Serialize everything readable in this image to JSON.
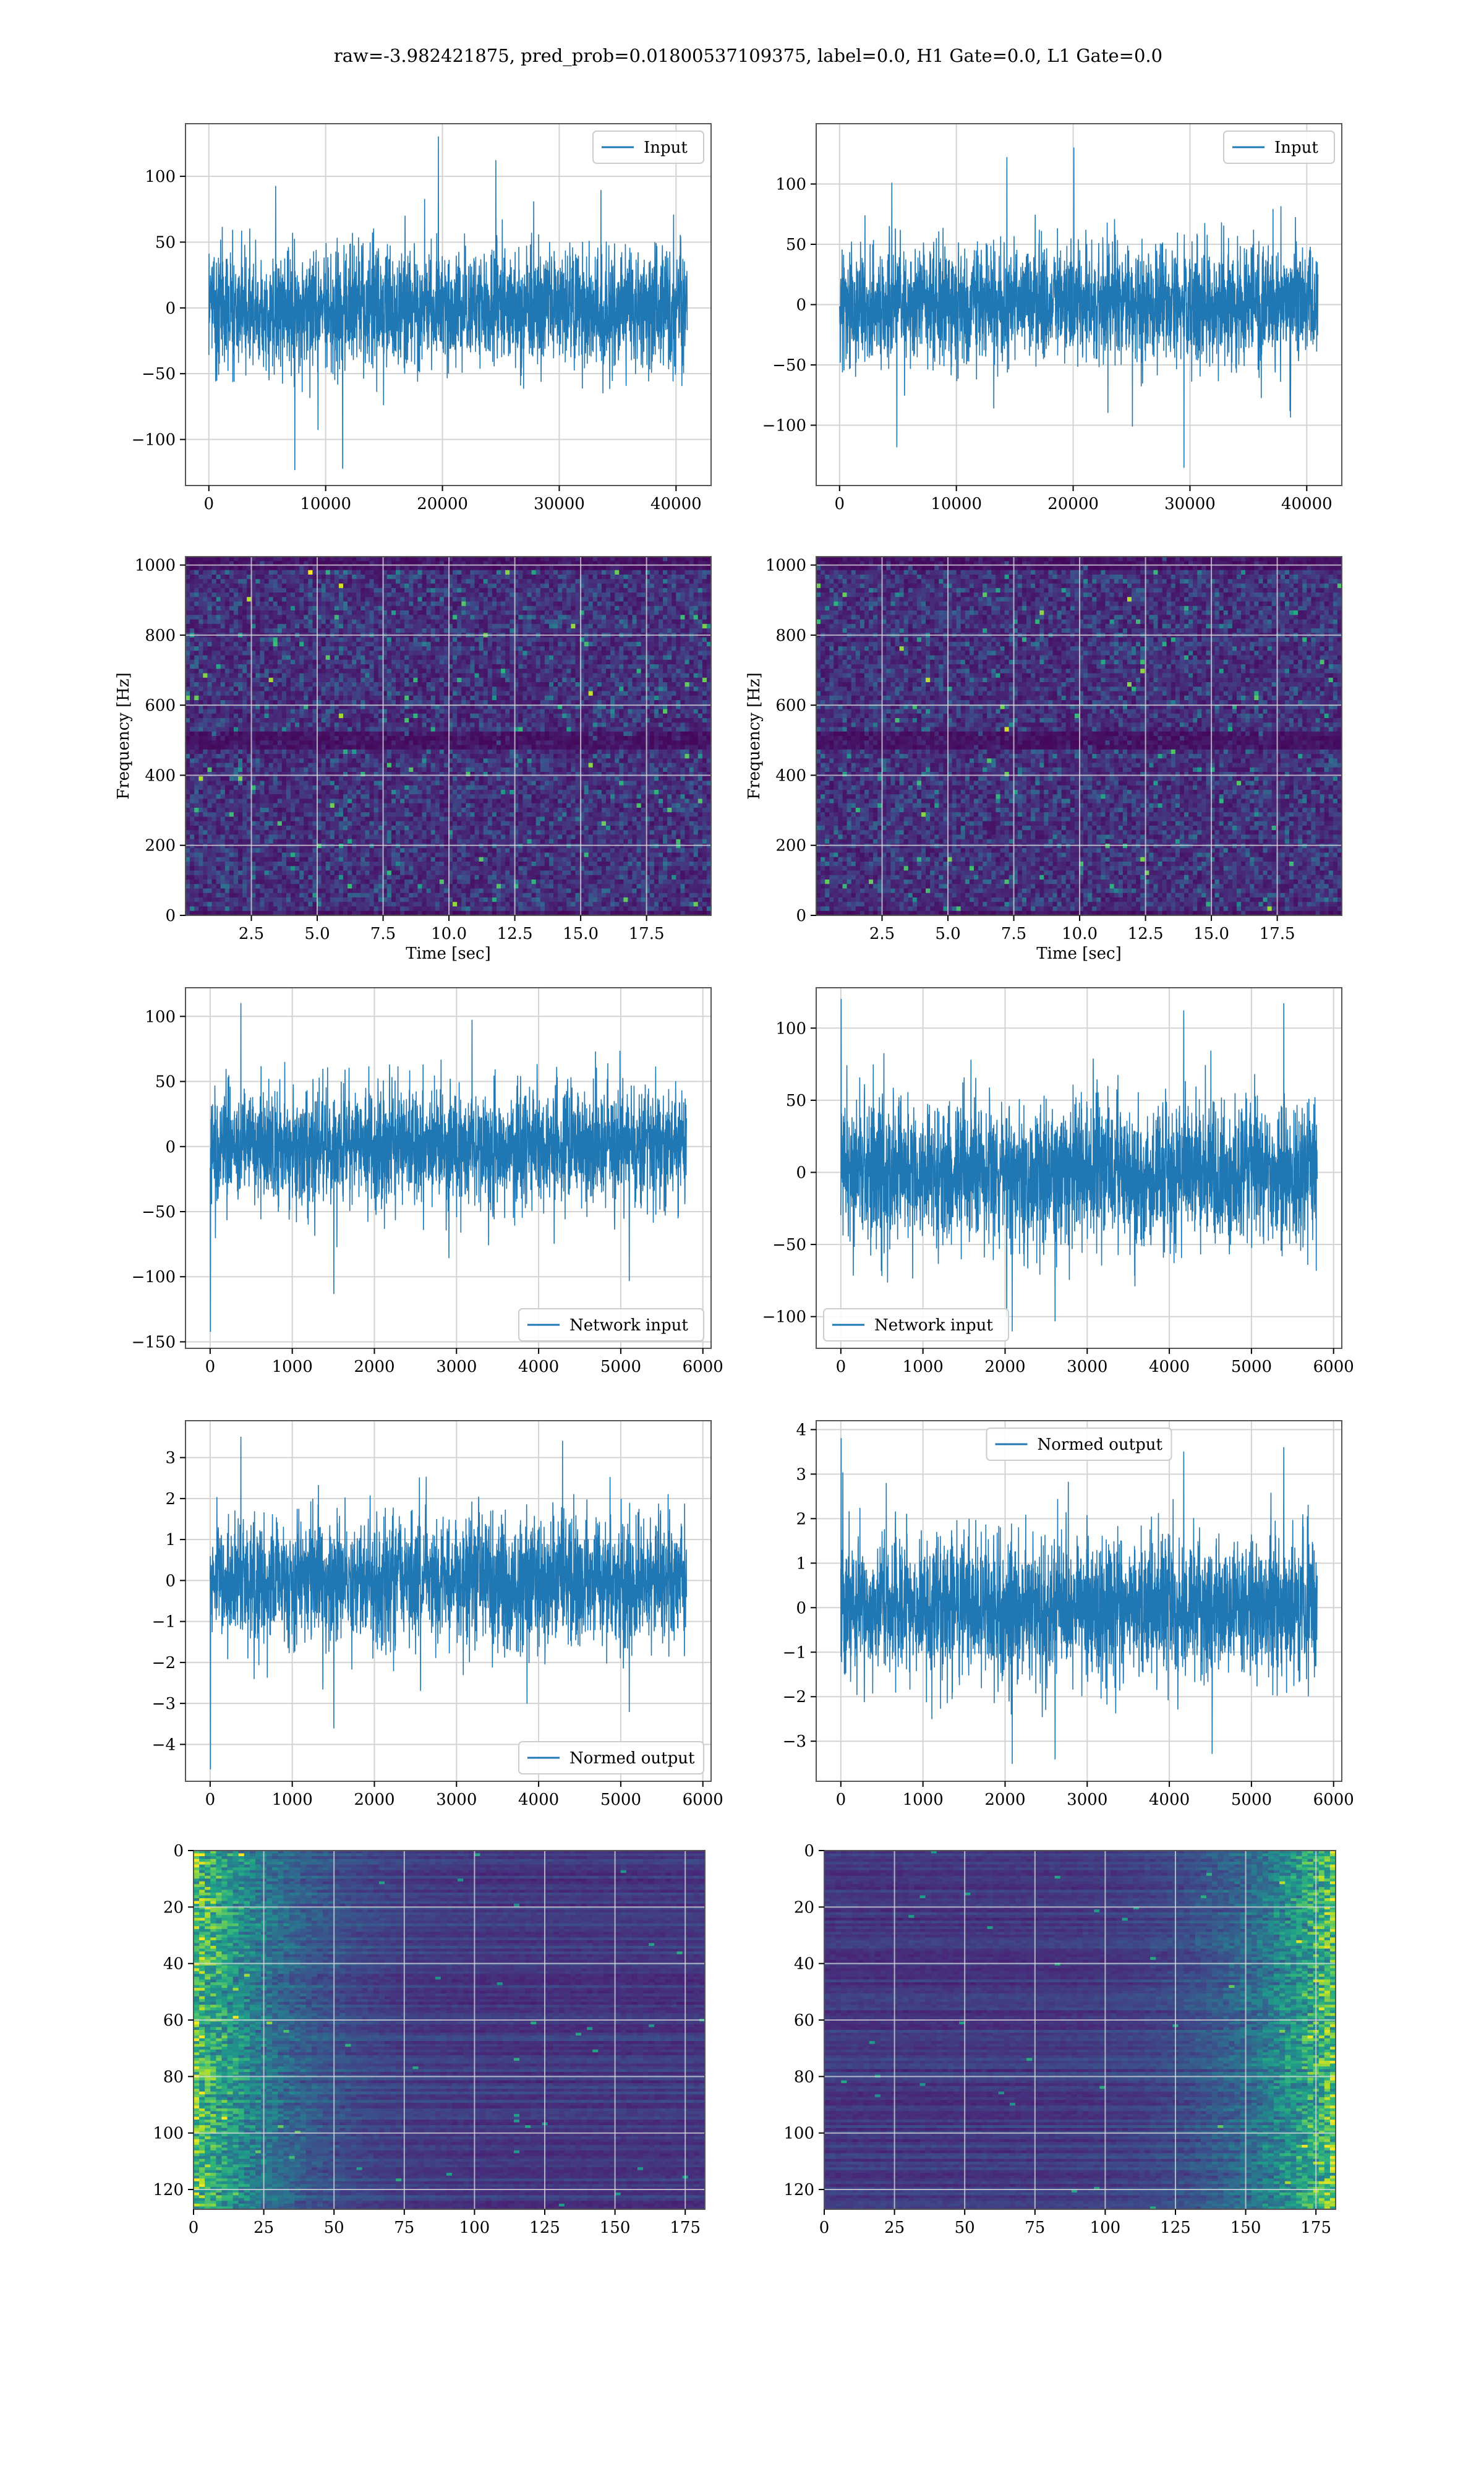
{
  "figure": {
    "suptitle": "raw=-3.982421875, pred_prob=0.01800537109375, label=0.0, H1 Gate=0.0, L1 Gate=0.0"
  },
  "colors": {
    "line": "#1f77b4",
    "grid": "#d3d3d3",
    "frame": "#555555",
    "viridis_low": "#440154",
    "viridis_mid": "#21918c",
    "viridis_high": "#fde725"
  },
  "chart_data": [
    {
      "id": "input-h1",
      "type": "line",
      "series": [
        {
          "name": "Input",
          "approx_envelope": [
            -100,
            100
          ],
          "length": 40960
        }
      ],
      "xlim": [
        -2000,
        43000
      ],
      "ylim": [
        -135,
        140
      ],
      "xticks": [
        0,
        10000,
        20000,
        30000,
        40000
      ],
      "xtick_labels": [
        "0",
        "10000",
        "20000",
        "30000",
        "40000"
      ],
      "yticks": [
        -100,
        -50,
        0,
        50,
        100
      ],
      "ytick_labels": [
        "−100",
        "−50",
        "0",
        "50",
        "100"
      ],
      "xlabel": "",
      "ylabel": "",
      "grid": true,
      "legend": "upper right",
      "trace": {
        "length": 40960,
        "sigma": 22,
        "peaks": [
          [
            0.48,
            130
          ],
          [
            0.18,
            -123
          ],
          [
            0.28,
            -122
          ],
          [
            0.6,
            112
          ]
        ]
      }
    },
    {
      "id": "input-l1",
      "type": "line",
      "series": [
        {
          "name": "Input",
          "approx_envelope": [
            -100,
            100
          ],
          "length": 40960
        }
      ],
      "xlim": [
        -2000,
        43000
      ],
      "ylim": [
        -150,
        150
      ],
      "xticks": [
        0,
        10000,
        20000,
        30000,
        40000
      ],
      "xtick_labels": [
        "0",
        "10000",
        "20000",
        "30000",
        "40000"
      ],
      "yticks": [
        -100,
        -50,
        0,
        50,
        100
      ],
      "ytick_labels": [
        "−100",
        "−50",
        "0",
        "50",
        "100"
      ],
      "xlabel": "",
      "ylabel": "",
      "grid": true,
      "legend": "upper right",
      "trace": {
        "length": 40960,
        "sigma": 24,
        "peaks": [
          [
            0.49,
            130
          ],
          [
            0.72,
            -135
          ],
          [
            0.35,
            122
          ],
          [
            0.12,
            -118
          ]
        ]
      }
    },
    {
      "id": "spectrogram-h1",
      "type": "heatmap",
      "xlabel": "Time [sec]",
      "ylabel": "Frequency [Hz]",
      "xlim": [
        0,
        19.95
      ],
      "ylim": [
        0,
        1024
      ],
      "xticks": [
        2.5,
        5.0,
        7.5,
        10.0,
        12.5,
        15.0,
        17.5
      ],
      "xtick_labels": [
        "2.5",
        "5.0",
        "7.5",
        "10.0",
        "12.5",
        "15.0",
        "17.5"
      ],
      "yticks": [
        0,
        200,
        400,
        600,
        800,
        1000
      ],
      "ytick_labels": [
        "0",
        "200",
        "400",
        "600",
        "800",
        "1000"
      ],
      "grid": true,
      "colormap": "viridis",
      "heatmap": {
        "cols": 120,
        "rows": 80,
        "dark_bands": [
          [
            480,
            520
          ],
          [
            985,
            1024
          ],
          [
            0,
            18
          ]
        ],
        "seed": 11
      }
    },
    {
      "id": "spectrogram-l1",
      "type": "heatmap",
      "xlabel": "Time [sec]",
      "ylabel": "Frequency [Hz]",
      "xlim": [
        0,
        19.95
      ],
      "ylim": [
        0,
        1024
      ],
      "xticks": [
        2.5,
        5.0,
        7.5,
        10.0,
        12.5,
        15.0,
        17.5
      ],
      "xtick_labels": [
        "2.5",
        "5.0",
        "7.5",
        "10.0",
        "12.5",
        "15.0",
        "17.5"
      ],
      "yticks": [
        0,
        200,
        400,
        600,
        800,
        1000
      ],
      "ytick_labels": [
        "0",
        "200",
        "400",
        "600",
        "800",
        "1000"
      ],
      "grid": true,
      "colormap": "viridis",
      "heatmap": {
        "cols": 120,
        "rows": 80,
        "dark_bands": [
          [
            480,
            520
          ],
          [
            985,
            1024
          ],
          [
            0,
            18
          ]
        ],
        "seed": 23
      }
    },
    {
      "id": "network-input-h1",
      "type": "line",
      "series": [
        {
          "name": "Network input",
          "approx_envelope": [
            -80,
            100
          ],
          "length": 5800
        }
      ],
      "xlim": [
        -300,
        6100
      ],
      "ylim": [
        -155,
        122
      ],
      "xticks": [
        0,
        1000,
        2000,
        3000,
        4000,
        5000,
        6000
      ],
      "xtick_labels": [
        "0",
        "1000",
        "2000",
        "3000",
        "4000",
        "5000",
        "6000"
      ],
      "yticks": [
        -150,
        -100,
        -50,
        0,
        50,
        100
      ],
      "ytick_labels": [
        "−150",
        "−100",
        "−50",
        "0",
        "50",
        "100"
      ],
      "xlabel": "",
      "ylabel": "",
      "grid": true,
      "legend": "lower right",
      "trace": {
        "length": 5800,
        "sigma": 22,
        "peaks": [
          [
            0.001,
            -142
          ],
          [
            0.065,
            110
          ],
          [
            0.26,
            -113
          ],
          [
            0.88,
            -103
          ],
          [
            0.55,
            97
          ]
        ]
      }
    },
    {
      "id": "network-input-l1",
      "type": "line",
      "series": [
        {
          "name": "Network input",
          "approx_envelope": [
            -100,
            100
          ],
          "length": 5800
        }
      ],
      "xlim": [
        -300,
        6100
      ],
      "ylim": [
        -122,
        128
      ],
      "xticks": [
        0,
        1000,
        2000,
        3000,
        4000,
        5000,
        6000
      ],
      "xtick_labels": [
        "0",
        "1000",
        "2000",
        "3000",
        "4000",
        "5000",
        "6000"
      ],
      "yticks": [
        -100,
        -50,
        0,
        50,
        100
      ],
      "ytick_labels": [
        "−100",
        "−50",
        "0",
        "50",
        "100"
      ],
      "xlabel": "",
      "ylabel": "",
      "grid": true,
      "legend": "lower left",
      "trace": {
        "length": 5800,
        "sigma": 24,
        "peaks": [
          [
            0.001,
            120
          ],
          [
            0.72,
            112
          ],
          [
            0.36,
            -110
          ],
          [
            0.45,
            -103
          ],
          [
            0.93,
            117
          ]
        ]
      }
    },
    {
      "id": "normed-output-h1",
      "type": "line",
      "series": [
        {
          "name": "Normed output",
          "approx_envelope": [
            -3,
            3
          ],
          "length": 5800
        }
      ],
      "xlim": [
        -300,
        6100
      ],
      "ylim": [
        -4.9,
        3.9
      ],
      "xticks": [
        0,
        1000,
        2000,
        3000,
        4000,
        5000,
        6000
      ],
      "xtick_labels": [
        "0",
        "1000",
        "2000",
        "3000",
        "4000",
        "5000",
        "6000"
      ],
      "yticks": [
        -4,
        -3,
        -2,
        -1,
        0,
        1,
        2,
        3
      ],
      "ytick_labels": [
        "−4",
        "−3",
        "−2",
        "−1",
        "0",
        "1",
        "2",
        "3"
      ],
      "xlabel": "",
      "ylabel": "",
      "grid": true,
      "legend": "lower right",
      "trace": {
        "length": 5800,
        "sigma": 0.75,
        "peaks": [
          [
            0.001,
            -4.6
          ],
          [
            0.065,
            3.5
          ],
          [
            0.26,
            -3.6
          ],
          [
            0.74,
            3.4
          ],
          [
            0.88,
            -3.2
          ]
        ]
      }
    },
    {
      "id": "normed-output-l1",
      "type": "line",
      "series": [
        {
          "name": "Normed output",
          "approx_envelope": [
            -3,
            3.5
          ],
          "length": 5800
        }
      ],
      "xlim": [
        -300,
        6100
      ],
      "ylim": [
        -3.9,
        4.2
      ],
      "xticks": [
        0,
        1000,
        2000,
        3000,
        4000,
        5000,
        6000
      ],
      "xtick_labels": [
        "0",
        "1000",
        "2000",
        "3000",
        "4000",
        "5000",
        "6000"
      ],
      "yticks": [
        -3,
        -2,
        -1,
        0,
        1,
        2,
        3,
        4
      ],
      "ytick_labels": [
        "−3",
        "−2",
        "−1",
        "0",
        "1",
        "2",
        "3",
        "4"
      ],
      "xlabel": "",
      "ylabel": "",
      "grid": true,
      "legend": "upper center",
      "trace": {
        "length": 5800,
        "sigma": 0.78,
        "peaks": [
          [
            0.001,
            3.8
          ],
          [
            0.72,
            3.5
          ],
          [
            0.36,
            -3.5
          ],
          [
            0.45,
            -3.4
          ],
          [
            0.93,
            3.6
          ]
        ]
      }
    },
    {
      "id": "feature-map-h1",
      "type": "heatmap",
      "xlabel": "",
      "ylabel": "",
      "xlim": [
        0,
        182
      ],
      "ylim": [
        127,
        0
      ],
      "xticks": [
        0,
        25,
        50,
        75,
        100,
        125,
        150,
        175
      ],
      "xtick_labels": [
        "0",
        "25",
        "50",
        "75",
        "100",
        "125",
        "150",
        "175"
      ],
      "yticks": [
        0,
        20,
        40,
        60,
        80,
        100,
        120
      ],
      "ytick_labels": [
        "0",
        "20",
        "40",
        "60",
        "80",
        "100",
        "120"
      ],
      "grid": true,
      "colormap": "viridis",
      "heatmap": {
        "cols": 91,
        "rows": 128,
        "bright_edge": "left",
        "seed": 5
      }
    },
    {
      "id": "feature-map-l1",
      "type": "heatmap",
      "xlabel": "",
      "ylabel": "",
      "xlim": [
        0,
        182
      ],
      "ylim": [
        127,
        0
      ],
      "xticks": [
        0,
        25,
        50,
        75,
        100,
        125,
        150,
        175
      ],
      "xtick_labels": [
        "0",
        "25",
        "50",
        "75",
        "100",
        "125",
        "150",
        "175"
      ],
      "yticks": [
        0,
        20,
        40,
        60,
        80,
        100,
        120
      ],
      "ytick_labels": [
        "0",
        "20",
        "40",
        "60",
        "80",
        "100",
        "120"
      ],
      "grid": true,
      "colormap": "viridis",
      "heatmap": {
        "cols": 91,
        "rows": 128,
        "bright_edge": "right",
        "seed": 17
      }
    }
  ]
}
